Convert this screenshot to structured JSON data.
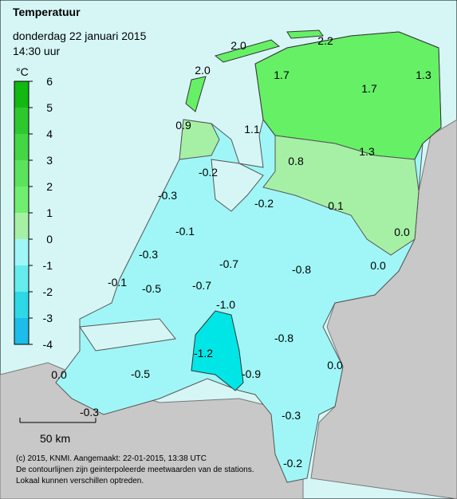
{
  "header": {
    "title": "Temperatuur",
    "date": "donderdag 22 januari 2015",
    "time": "14:30 uur"
  },
  "legend": {
    "unit": "°C",
    "ticks": [
      6,
      5,
      4,
      3,
      2,
      1,
      0,
      -1,
      -2,
      -3,
      -4
    ],
    "colors": [
      "#13b813",
      "#2ec82e",
      "#45d645",
      "#5ce35c",
      "#70ee70",
      "#a6f0a6",
      "#a0f6f6",
      "#66ecec",
      "#2ed8e6",
      "#1cbde8"
    ]
  },
  "stations": [
    "2.0",
    "2.2",
    "2.0",
    "1.7",
    "1.7",
    "1.3",
    "0.9",
    "1.1",
    "1.3",
    "0.8",
    "-0.2",
    "-0.3",
    "-0.2",
    "0.1",
    "0.0",
    "-0.1",
    "-0.3",
    "-0.7",
    "0.0",
    "-0.8",
    "-0.1",
    "-0.5",
    "-0.7",
    "-1.0",
    "-0.8",
    "-1.2",
    "0.0",
    "-0.9",
    "0.0",
    "-0.5",
    "-0.3",
    "-0.3",
    "-0.2"
  ],
  "scale": "50 km",
  "footer": [
    "(c) 2015, KNMI. Aangemaakt: 22-01-2015, 13:38 UTC",
    "De contourlijnen zijn geinterpoleerde meetwaarden van de stations.",
    "Lokaal kunnen verschillen optreden."
  ]
}
